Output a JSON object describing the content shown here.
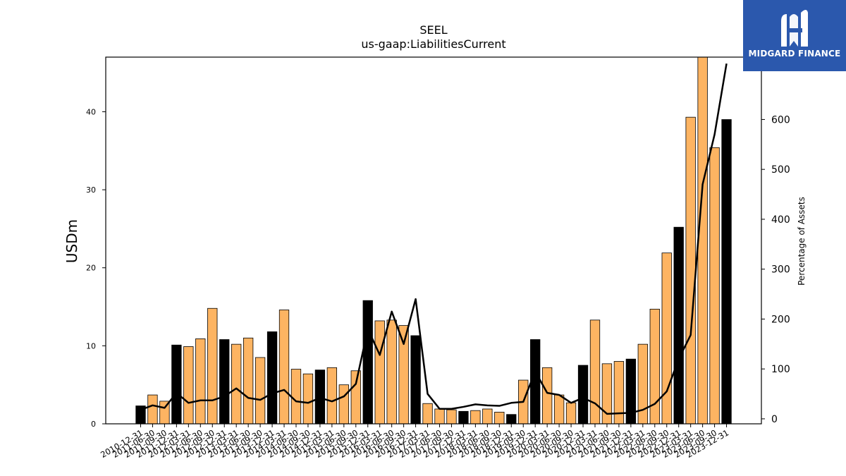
{
  "chart_data": {
    "type": "bar",
    "title": "SEEL",
    "subtitle": "us-gaap:LiabilitiesCurrent",
    "ylabel": "USDm",
    "y2label": "Percentage of Assets",
    "ylim": [
      0,
      47
    ],
    "y2lim": [
      -10,
      725
    ],
    "yticks": [
      0,
      10,
      20,
      30,
      40
    ],
    "y2ticks": [
      0,
      100,
      200,
      300,
      400,
      500,
      600
    ],
    "categories": [
      "2010-12-31",
      "2011-06-30",
      "2011-09-30",
      "2011-12-31",
      "2012-03-31",
      "2012-06-30",
      "2012-09-30",
      "2012-12-31",
      "2013-03-31",
      "2013-06-30",
      "2013-09-30",
      "2013-12-31",
      "2014-03-31",
      "2014-06-30",
      "2014-09-30",
      "2014-12-31",
      "2015-03-31",
      "2015-06-30",
      "2015-09-30",
      "2015-12-31",
      "2016-03-31",
      "2016-06-30",
      "2016-09-30",
      "2016-12-31",
      "2017-03-31",
      "2017-06-30",
      "2017-09-30",
      "2017-12-31",
      "2018-03-31",
      "2018-06-30",
      "2018-09-30",
      "2018-12-31",
      "2019-09-30",
      "2019-12-31",
      "2020-03-31",
      "2020-06-30",
      "2020-09-30",
      "2020-12-31",
      "2021-03-31",
      "2021-06-30",
      "2021-09-30",
      "2021-12-31",
      "2022-03-31",
      "2022-06-30",
      "2022-09-30",
      "2022-12-31",
      "2023-03-31",
      "2023-06-30",
      "2023-09-30",
      "2023-12-31"
    ],
    "series": [
      {
        "type": "bar",
        "values": [
          2.3,
          3.7,
          2.9,
          10.1,
          9.9,
          10.9,
          14.8,
          10.8,
          10.2,
          11.0,
          8.5,
          11.8,
          14.6,
          7.0,
          6.4,
          6.9,
          7.2,
          5.0,
          6.8,
          15.8,
          13.2,
          13.3,
          12.6,
          11.3,
          2.6,
          1.9,
          1.8,
          1.6,
          1.7,
          1.9,
          1.5,
          1.2,
          5.6,
          10.8,
          7.2,
          3.7,
          2.7,
          7.5,
          13.3,
          7.7,
          8.0,
          8.3,
          10.2,
          14.7,
          21.9,
          25.2,
          39.3,
          48.5,
          35.4,
          39.0
        ],
        "highlight": [
          true,
          false,
          false,
          true,
          false,
          false,
          false,
          true,
          false,
          false,
          false,
          true,
          false,
          false,
          false,
          true,
          false,
          false,
          false,
          true,
          false,
          false,
          false,
          true,
          false,
          false,
          false,
          true,
          false,
          false,
          false,
          true,
          false,
          true,
          false,
          false,
          false,
          true,
          false,
          false,
          false,
          true,
          false,
          false,
          false,
          true,
          false,
          false,
          false,
          true
        ]
      },
      {
        "type": "line",
        "axis": "secondary",
        "values": [
          18,
          27,
          22,
          52,
          32,
          37,
          37,
          45,
          61,
          42,
          38,
          51,
          58,
          35,
          32,
          42,
          35,
          45,
          70,
          180,
          128,
          215,
          150,
          240,
          50,
          20,
          20,
          24,
          29,
          27,
          26,
          32,
          34,
          95,
          52,
          48,
          32,
          42,
          31,
          10,
          11,
          12,
          18,
          30,
          55,
          120,
          168,
          470,
          570,
          712
        ]
      }
    ],
    "grid": false,
    "legend": "none",
    "colors": {
      "bar": "#fdb462",
      "bar_highlight": "#000000",
      "line": "#000000"
    }
  },
  "logo": {
    "text": "MIDGARD FINANCE",
    "icon": "midgard-logo-icon",
    "background": "#2b58ad"
  }
}
